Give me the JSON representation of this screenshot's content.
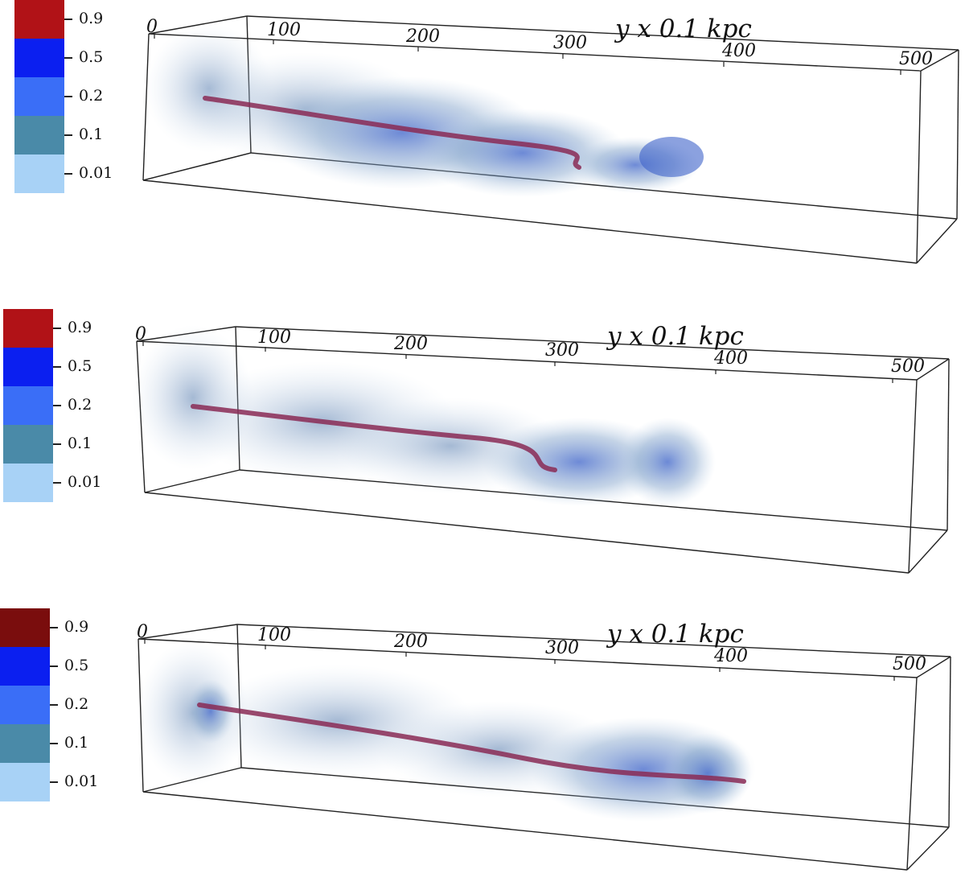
{
  "panels": [
    {
      "legend": [
        {
          "label": "0.9",
          "color": "#b11217"
        },
        {
          "label": "0.5",
          "color": "#0b1ff0"
        },
        {
          "label": "0.2",
          "color": "#3a6ef7"
        },
        {
          "label": "0.1",
          "color": "#4a8aa8"
        },
        {
          "label": "0.01",
          "color": "#a8d2f6"
        }
      ],
      "axis_title": "y x 0.1 kpc",
      "axis_ticks": [
        "0",
        "100",
        "200",
        "300",
        "400",
        "500"
      ]
    },
    {
      "legend": [
        {
          "label": "0.9",
          "color": "#b11217"
        },
        {
          "label": "0.5",
          "color": "#0b1ff0"
        },
        {
          "label": "0.2",
          "color": "#3a6ef7"
        },
        {
          "label": "0.1",
          "color": "#4a8aa8"
        },
        {
          "label": "0.01",
          "color": "#a8d2f6"
        }
      ],
      "axis_title": "y x 0.1 kpc",
      "axis_ticks": [
        "0",
        "100",
        "200",
        "300",
        "400",
        "500"
      ]
    },
    {
      "legend": [
        {
          "label": "0.9",
          "color": "#7a0d0d"
        },
        {
          "label": "0.5",
          "color": "#0b1ff0"
        },
        {
          "label": "0.2",
          "color": "#3a6ef7"
        },
        {
          "label": "0.1",
          "color": "#4a8aa8"
        },
        {
          "label": "0.01",
          "color": "#a8d2f6"
        }
      ],
      "axis_title": "y x 0.1 kpc",
      "axis_ticks": [
        "0",
        "100",
        "200",
        "300",
        "400",
        "500"
      ]
    }
  ],
  "colors": {
    "jet_core": "#8a2a55",
    "cloud_light": "#b7cde4",
    "cloud_mid": "#7d9fc9",
    "cloud_dark": "#3d63c9",
    "box_line": "#222222"
  }
}
